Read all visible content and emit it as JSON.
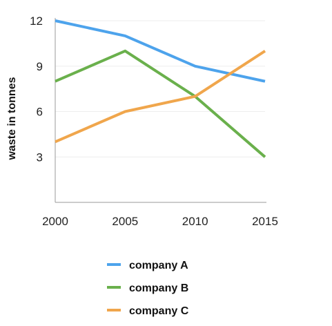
{
  "chart_data": {
    "type": "line",
    "title": "",
    "xlabel": "",
    "ylabel": "waste in tonnes",
    "x": [
      2000,
      2005,
      2010,
      2015
    ],
    "x_tick_labels": [
      "2000",
      "2005",
      "2010",
      "2015"
    ],
    "y_ticks": [
      3,
      6,
      9,
      12
    ],
    "y_tick_labels": [
      "3",
      "6",
      "9",
      "12"
    ],
    "ylim": [
      0,
      12
    ],
    "grid": "horizontal-light",
    "legend_position": "bottom",
    "series": [
      {
        "name": "company A",
        "color": "#4da3ec",
        "values": [
          12,
          11,
          9,
          8
        ]
      },
      {
        "name": "company B",
        "color": "#6ab04c",
        "values": [
          8,
          10,
          7,
          3
        ]
      },
      {
        "name": "company C",
        "color": "#f0a64c",
        "values": [
          4,
          6,
          7,
          10
        ]
      }
    ]
  }
}
